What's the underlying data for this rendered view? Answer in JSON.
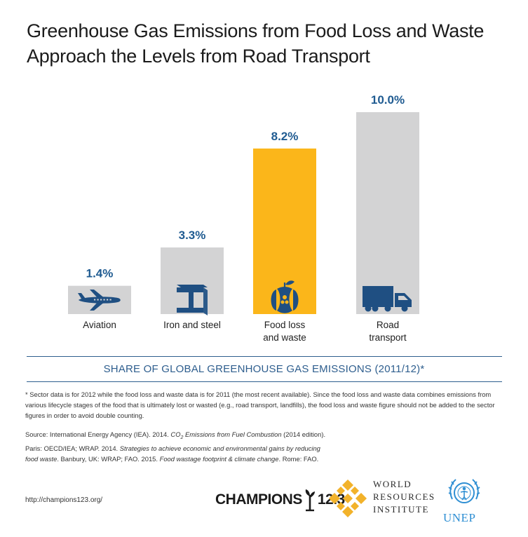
{
  "title_lines": [
    "Greenhouse Gas Emissions from Food Loss and Waste",
    "Approach the Levels from Road Transport"
  ],
  "chart_data": {
    "type": "bar",
    "title": "Greenhouse Gas Emissions from Food Loss and Waste Approach the Levels from Road Transport",
    "categories": [
      "Aviation",
      "Iron and steel",
      "Food loss and waste",
      "Road transport"
    ],
    "category_lines": [
      [
        "Aviation"
      ],
      [
        "Iron and steel"
      ],
      [
        "Food loss",
        "and waste"
      ],
      [
        "Road",
        "transport"
      ]
    ],
    "values": [
      1.4,
      3.3,
      8.2,
      10.0
    ],
    "value_labels": [
      "1.4%",
      "3.3%",
      "8.2%",
      "10.0%"
    ],
    "xlabel": "SHARE OF GLOBAL GREENHOUSE GAS EMISSIONS (2011/12)*",
    "ylabel": "",
    "ylim": [
      0,
      10
    ],
    "grid": false,
    "colors": {
      "default": "#d3d3d4",
      "highlight": "#fbb61a",
      "label": "#1f5b91",
      "icon": "#1f4f82"
    },
    "highlight_index": 2,
    "icons": [
      "airplane-icon",
      "steel-beam-icon",
      "apple-core-icon",
      "truck-icon"
    ]
  },
  "footnote": "* Sector data is for 2012 while the food loss and waste data is for 2011 (the most recent available). Since the food loss and waste data combines emissions from various lifecycle stages of the food that is ultimately lost or wasted (e.g., road transport, landfills), the food loss and waste figure should not be added to the sector figures in order to avoid double counting.",
  "source": {
    "prefix": "Source:  International Energy Agency (IEA). 2014. ",
    "co": "CO",
    "sub": "2",
    "title1": " Emissions from Fuel Combustion",
    "mid1": " (2014 edition). Paris: OECD/IEA; WRAP. 2014. ",
    "title2": "Strategies to achieve economic and environmental gains by reducing food waste",
    "mid2": ". Banbury, UK: WRAP; FAO. 2015. ",
    "title3": "Food wastage footprint & climate change",
    "suffix": ". Rome: FAO."
  },
  "url": "http://champions123.org/",
  "logos": {
    "champions_left": "CHAMPIONS",
    "champions_right": "12.3",
    "wri_lines": [
      "WORLD",
      "RESOURCES",
      "INSTITUTE"
    ],
    "unep": "UNEP"
  }
}
